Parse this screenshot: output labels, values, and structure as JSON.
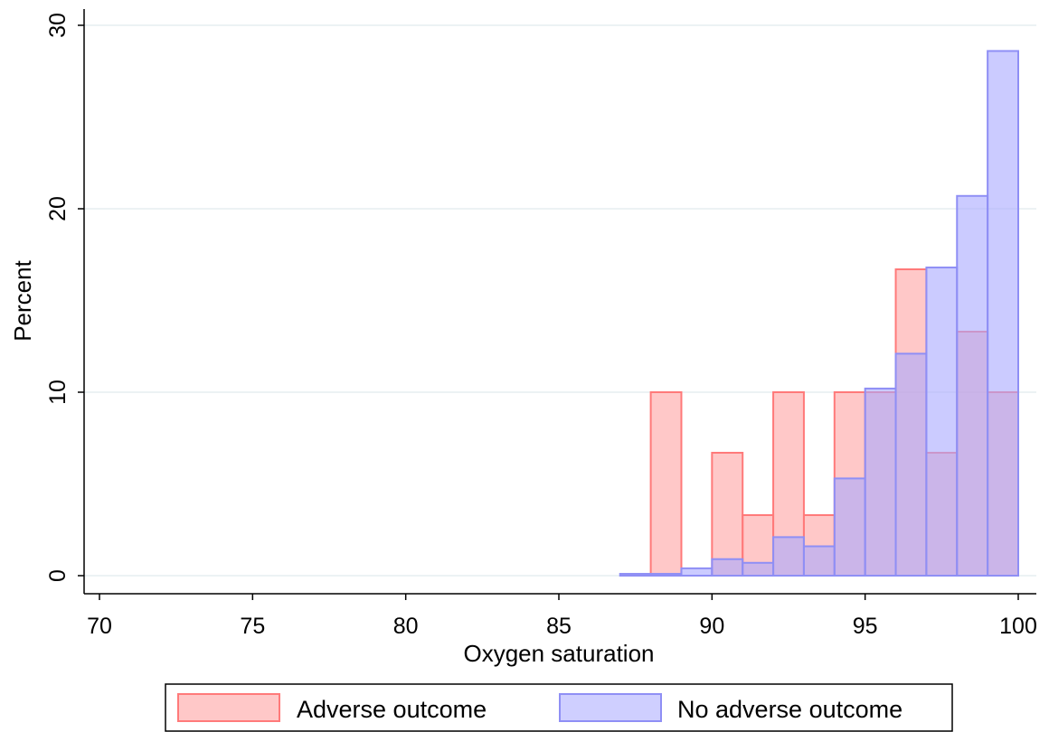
{
  "chart_data": {
    "type": "bar",
    "subtype": "overlaid-histogram",
    "xlabel": "Oxygen saturation",
    "ylabel": "Percent",
    "xlim": [
      70,
      100
    ],
    "ylim": [
      0,
      30
    ],
    "xticks": [
      70,
      75,
      80,
      85,
      90,
      95,
      100
    ],
    "yticks": [
      0,
      10,
      20,
      30
    ],
    "grid": true,
    "bin_width": 1,
    "legend_position": "bottom",
    "series": [
      {
        "name": "Adverse outcome",
        "color": "#ff9a9a",
        "bins": [
          {
            "start": 88,
            "value": 10.0
          },
          {
            "start": 90,
            "value": 6.7
          },
          {
            "start": 91,
            "value": 3.3
          },
          {
            "start": 92,
            "value": 10.0
          },
          {
            "start": 93,
            "value": 3.3
          },
          {
            "start": 94,
            "value": 10.0
          },
          {
            "start": 95,
            "value": 10.0
          },
          {
            "start": 96,
            "value": 16.7
          },
          {
            "start": 97,
            "value": 6.7
          },
          {
            "start": 98,
            "value": 13.3
          },
          {
            "start": 99,
            "value": 10.0
          }
        ]
      },
      {
        "name": "No adverse outcome",
        "color": "#a8a8ff",
        "bins": [
          {
            "start": 87,
            "value": 0.1
          },
          {
            "start": 88,
            "value": 0.1
          },
          {
            "start": 89,
            "value": 0.4
          },
          {
            "start": 90,
            "value": 0.9
          },
          {
            "start": 91,
            "value": 0.7
          },
          {
            "start": 92,
            "value": 2.1
          },
          {
            "start": 93,
            "value": 1.6
          },
          {
            "start": 94,
            "value": 5.3
          },
          {
            "start": 95,
            "value": 10.2
          },
          {
            "start": 96,
            "value": 12.1
          },
          {
            "start": 97,
            "value": 16.8
          },
          {
            "start": 98,
            "value": 20.7
          },
          {
            "start": 99,
            "value": 28.6
          }
        ]
      }
    ]
  }
}
